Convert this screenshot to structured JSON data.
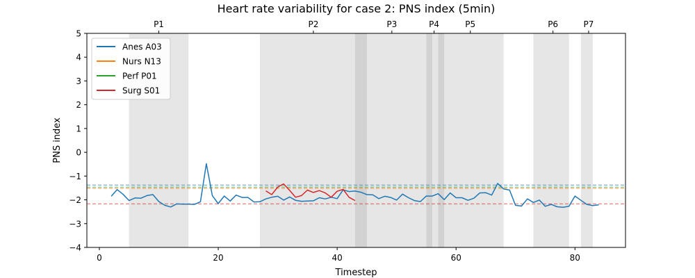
{
  "chart_data": {
    "type": "line",
    "title": "Heart rate variability for case 2: PNS index (5min)",
    "xlabel": "Timestep",
    "ylabel": "PNS index",
    "xlim": [
      -2.1,
      88.5
    ],
    "ylim": [
      -4,
      5
    ],
    "xticks": [
      0,
      20,
      40,
      60,
      80
    ],
    "yticks": [
      -4,
      -3,
      -2,
      -1,
      0,
      1,
      2,
      3,
      4,
      5
    ],
    "legend_position": "top-left",
    "phases": [
      {
        "label": "P1",
        "start": 5,
        "end": 15,
        "label_x": 10
      },
      {
        "label": "P2",
        "start": 27,
        "end": 45,
        "label_x": 36
      },
      {
        "label": "P3",
        "start": 43,
        "end": 56,
        "label_x": 49.2
      },
      {
        "label": "P4",
        "start": 55,
        "end": 58,
        "label_x": 56.3
      },
      {
        "label": "P5",
        "start": 57,
        "end": 68,
        "label_x": 62.4
      },
      {
        "label": "P6",
        "start": 73,
        "end": 79,
        "label_x": 76.3
      },
      {
        "label": "P7",
        "start": 81,
        "end": 83,
        "label_x": 82.3
      }
    ],
    "series": [
      {
        "name": "Anes A03",
        "color": "#1f77b4",
        "baseline": -1.38,
        "x": [
          2,
          3,
          4,
          5,
          6,
          7,
          8,
          9,
          10,
          11,
          12,
          13,
          14,
          15,
          16,
          17,
          18,
          19,
          20,
          21,
          22,
          23,
          24,
          25,
          26,
          27,
          28,
          29,
          30,
          31,
          32,
          33,
          34,
          35,
          36,
          37,
          38,
          39,
          40,
          41,
          42,
          43,
          44,
          45,
          46,
          47,
          48,
          49,
          50,
          51,
          52,
          53,
          54,
          55,
          56,
          57,
          58,
          59,
          60,
          61,
          62,
          63,
          64,
          65,
          66,
          67,
          68,
          69,
          70,
          71,
          72,
          73,
          74,
          75,
          76,
          77,
          78,
          79,
          80,
          81,
          82,
          83,
          84
        ],
        "y": [
          -1.85,
          -1.57,
          -1.77,
          -2.03,
          -1.92,
          -1.93,
          -1.82,
          -1.78,
          -2.07,
          -2.23,
          -2.3,
          -2.17,
          -2.18,
          -2.18,
          -2.19,
          -2.08,
          -0.48,
          -1.82,
          -2.16,
          -1.84,
          -2.05,
          -1.8,
          -1.9,
          -1.9,
          -2.09,
          -2.08,
          -1.96,
          -1.89,
          -1.85,
          -2.01,
          -1.88,
          -2.02,
          -2.06,
          -2.05,
          -2.04,
          -1.91,
          -1.96,
          -1.89,
          -1.95,
          -1.58,
          -1.65,
          -1.63,
          -1.68,
          -1.78,
          -1.79,
          -1.95,
          -1.85,
          -1.9,
          -2.01,
          -1.76,
          -1.91,
          -2.03,
          -2.07,
          -1.84,
          -1.84,
          -1.74,
          -1.99,
          -1.71,
          -1.91,
          -1.91,
          -2.02,
          -1.93,
          -1.71,
          -1.7,
          -1.8,
          -1.31,
          -1.54,
          -1.59,
          -2.23,
          -2.26,
          -1.96,
          -2.11,
          -2.01,
          -2.27,
          -2.19,
          -2.29,
          -2.31,
          -2.27,
          -1.84,
          -2.02,
          -2.19,
          -2.24,
          -2.21
        ]
      },
      {
        "name": "Nurs N13",
        "color": "#ff7f0e",
        "baseline": -1.52,
        "x": [],
        "y": []
      },
      {
        "name": "Perf P01",
        "color": "#2ca02c",
        "baseline": -1.47,
        "x": [],
        "y": []
      },
      {
        "name": "Surg S01",
        "color": "#d62728",
        "baseline": -2.17,
        "x": [
          28,
          29,
          30,
          31,
          32,
          33,
          34,
          35,
          36,
          37,
          38,
          39,
          40,
          41,
          42,
          43
        ],
        "y": [
          -1.62,
          -1.78,
          -1.46,
          -1.33,
          -1.6,
          -1.89,
          -1.82,
          -1.59,
          -1.69,
          -1.61,
          -1.71,
          -1.89,
          -1.64,
          -1.56,
          -1.89,
          -2.03
        ]
      }
    ]
  }
}
